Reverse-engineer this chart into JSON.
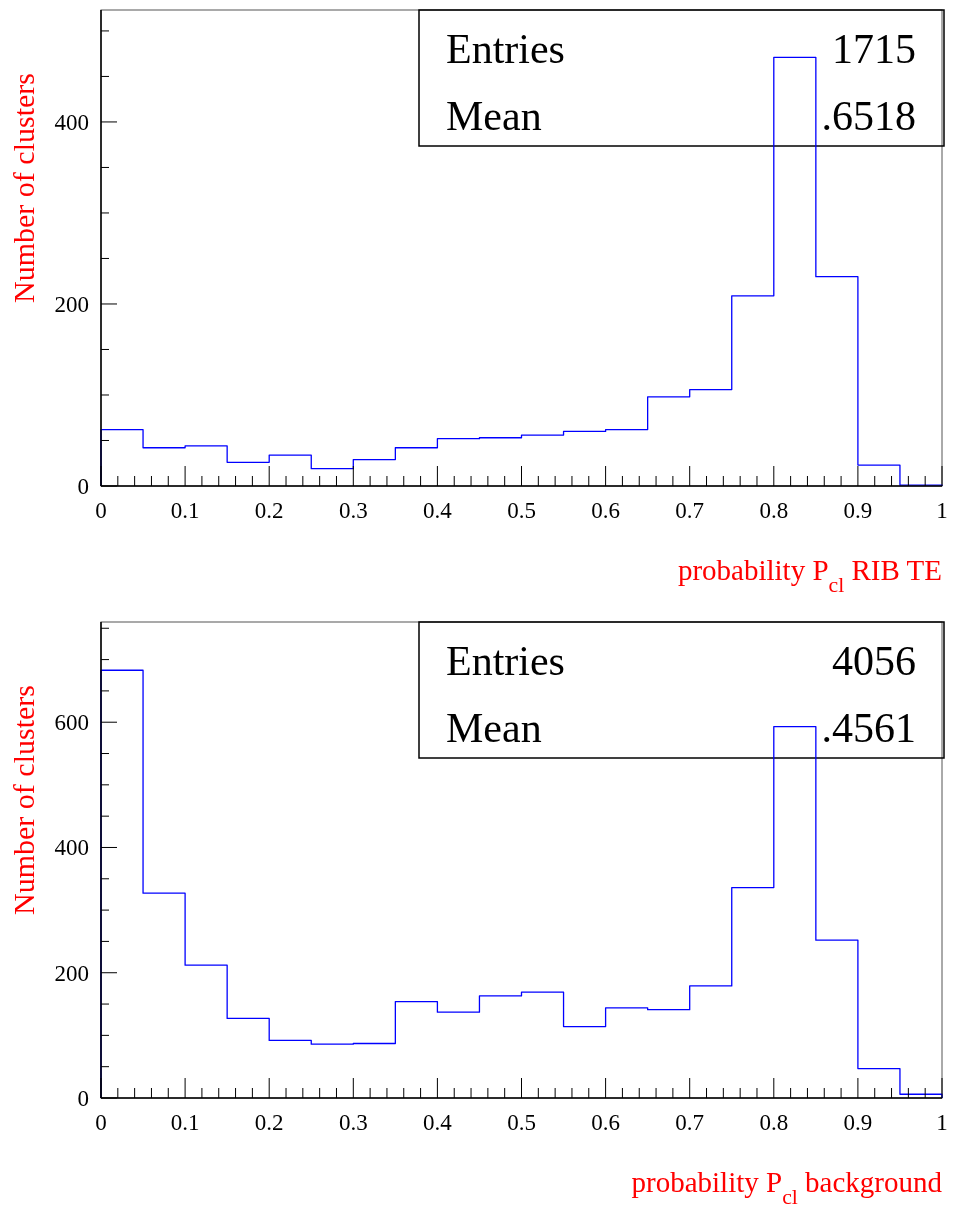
{
  "chart_data": [
    {
      "type": "histogram",
      "xlabel": "probability P$_{cl}$ RIB TE",
      "ylabel": "Number of clusters",
      "color": "#0000ff",
      "bins": [
        0,
        0.05,
        0.1,
        0.15,
        0.2,
        0.25,
        0.3,
        0.35,
        0.4,
        0.45,
        0.5,
        0.55,
        0.6,
        0.65,
        0.7,
        0.75,
        0.8,
        0.85,
        0.9,
        0.95,
        1
      ],
      "values": [
        62,
        42,
        44,
        26,
        34,
        19,
        29,
        42,
        52,
        53,
        56,
        60,
        62,
        98,
        106,
        209,
        471,
        230,
        23,
        1
      ],
      "xlim": [
        0,
        1
      ],
      "ylim": [
        0,
        523
      ],
      "xticks": [
        0,
        {
          "value": 0.02,
          "label": null
        },
        {
          "value": 0.04,
          "label": null
        },
        {
          "value": 0.06,
          "label": null
        },
        {
          "value": 0.08,
          "label": null
        },
        0.1,
        {
          "value": 0.12,
          "label": null
        },
        {
          "value": 0.14,
          "label": null
        },
        {
          "value": 0.16,
          "label": null
        },
        {
          "value": 0.18,
          "label": null
        },
        0.2,
        {
          "value": 0.22,
          "label": null
        },
        {
          "value": 0.24,
          "label": null
        },
        {
          "value": 0.26,
          "label": null
        },
        {
          "value": 0.28,
          "label": null
        },
        0.3,
        {
          "value": 0.32,
          "label": null
        },
        {
          "value": 0.34,
          "label": null
        },
        {
          "value": 0.36,
          "label": null
        },
        {
          "value": 0.38,
          "label": null
        },
        0.4,
        {
          "value": 0.42,
          "label": null
        },
        {
          "value": 0.44,
          "label": null
        },
        {
          "value": 0.46,
          "label": null
        },
        {
          "value": 0.48,
          "label": null
        },
        0.5,
        {
          "value": 0.52,
          "label": null
        },
        {
          "value": 0.54,
          "label": null
        },
        {
          "value": 0.56,
          "label": null
        },
        {
          "value": 0.58,
          "label": null
        },
        0.6,
        {
          "value": 0.62,
          "label": null
        },
        {
          "value": 0.64,
          "label": null
        },
        {
          "value": 0.66,
          "label": null
        },
        {
          "value": 0.68,
          "label": null
        },
        0.7,
        {
          "value": 0.72,
          "label": null
        },
        {
          "value": 0.74,
          "label": null
        },
        {
          "value": 0.76,
          "label": null
        },
        {
          "value": 0.78,
          "label": null
        },
        0.8,
        {
          "value": 0.82,
          "label": null
        },
        {
          "value": 0.84,
          "label": null
        },
        {
          "value": 0.86,
          "label": null
        },
        {
          "value": 0.88,
          "label": null
        },
        0.9,
        {
          "value": 0.92,
          "label": null
        },
        {
          "value": 0.94,
          "label": null
        },
        {
          "value": 0.96,
          "label": null
        },
        {
          "value": 0.98,
          "label": null
        },
        1
      ],
      "yticks": [
        0,
        {
          "value": 50,
          "label": null
        },
        {
          "value": 100,
          "label": null
        },
        {
          "value": 150,
          "label": null
        },
        200,
        {
          "value": 250,
          "label": null
        },
        {
          "value": 300,
          "label": null
        },
        {
          "value": 350,
          "label": null
        },
        400,
        {
          "value": 450,
          "label": null
        },
        {
          "value": 500,
          "label": null
        }
      ],
      "annotations": [
        "Entries",
        "1715",
        "Mean",
        ".6518"
      ]
    },
    {
      "type": "histogram",
      "xlabel": "probability P$_{cl}$ background",
      "ylabel": "Number of clusters",
      "color": "#0000ff",
      "bins": [
        0,
        0.05,
        0.1,
        0.15,
        0.2,
        0.25,
        0.3,
        0.35,
        0.4,
        0.45,
        0.5,
        0.55,
        0.6,
        0.65,
        0.7,
        0.75,
        0.8,
        0.85,
        0.9,
        0.95,
        1
      ],
      "values": [
        683,
        327,
        212,
        127,
        92,
        86,
        87,
        154,
        137,
        163,
        169,
        114,
        144,
        141,
        179,
        336,
        593,
        252,
        47,
        6
      ],
      "xlim": [
        0,
        1
      ],
      "ylim": [
        0,
        760
      ],
      "xticks": [
        0,
        {
          "value": 0.02,
          "label": null
        },
        {
          "value": 0.04,
          "label": null
        },
        {
          "value": 0.06,
          "label": null
        },
        {
          "value": 0.08,
          "label": null
        },
        0.1,
        {
          "value": 0.12,
          "label": null
        },
        {
          "value": 0.14,
          "label": null
        },
        {
          "value": 0.16,
          "label": null
        },
        {
          "value": 0.18,
          "label": null
        },
        0.2,
        {
          "value": 0.22,
          "label": null
        },
        {
          "value": 0.24,
          "label": null
        },
        {
          "value": 0.26,
          "label": null
        },
        {
          "value": 0.28,
          "label": null
        },
        0.3,
        {
          "value": 0.32,
          "label": null
        },
        {
          "value": 0.34,
          "label": null
        },
        {
          "value": 0.36,
          "label": null
        },
        {
          "value": 0.38,
          "label": null
        },
        0.4,
        {
          "value": 0.42,
          "label": null
        },
        {
          "value": 0.44,
          "label": null
        },
        {
          "value": 0.46,
          "label": null
        },
        {
          "value": 0.48,
          "label": null
        },
        0.5,
        {
          "value": 0.52,
          "label": null
        },
        {
          "value": 0.54,
          "label": null
        },
        {
          "value": 0.56,
          "label": null
        },
        {
          "value": 0.58,
          "label": null
        },
        0.6,
        {
          "value": 0.62,
          "label": null
        },
        {
          "value": 0.64,
          "label": null
        },
        {
          "value": 0.66,
          "label": null
        },
        {
          "value": 0.68,
          "label": null
        },
        0.7,
        {
          "value": 0.72,
          "label": null
        },
        {
          "value": 0.74,
          "label": null
        },
        {
          "value": 0.76,
          "label": null
        },
        {
          "value": 0.78,
          "label": null
        },
        0.8,
        {
          "value": 0.82,
          "label": null
        },
        {
          "value": 0.84,
          "label": null
        },
        {
          "value": 0.86,
          "label": null
        },
        {
          "value": 0.88,
          "label": null
        },
        0.9,
        {
          "value": 0.92,
          "label": null
        },
        {
          "value": 0.94,
          "label": null
        },
        {
          "value": 0.96,
          "label": null
        },
        {
          "value": 0.98,
          "label": null
        },
        1
      ],
      "yticks": [
        0,
        {
          "value": 50,
          "label": null
        },
        {
          "value": 100,
          "label": null
        },
        {
          "value": 150,
          "label": null
        },
        200,
        {
          "value": 250,
          "label": null
        },
        {
          "value": 300,
          "label": null
        },
        {
          "value": 350,
          "label": null
        },
        400,
        {
          "value": 450,
          "label": null
        },
        {
          "value": 500,
          "label": null
        },
        {
          "value": 550,
          "label": null
        },
        600,
        {
          "value": 650,
          "label": null
        },
        {
          "value": 700,
          "label": null
        },
        {
          "value": 750,
          "label": null
        }
      ],
      "annotations": [
        "Entries",
        "4056",
        "Mean",
        ".4561"
      ]
    }
  ]
}
